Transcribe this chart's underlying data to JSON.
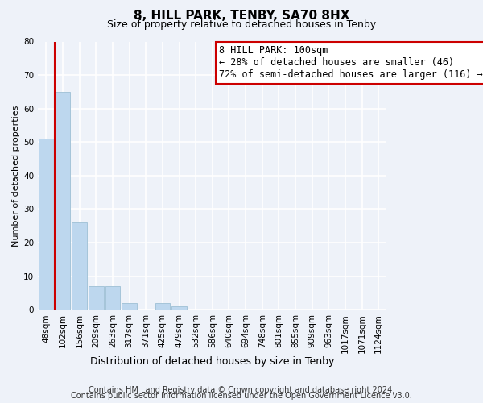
{
  "title": "8, HILL PARK, TENBY, SA70 8HX",
  "subtitle": "Size of property relative to detached houses in Tenby",
  "xlabel": "Distribution of detached houses by size in Tenby",
  "ylabel": "Number of detached properties",
  "bin_labels": [
    "48sqm",
    "102sqm",
    "156sqm",
    "209sqm",
    "263sqm",
    "317sqm",
    "371sqm",
    "425sqm",
    "479sqm",
    "532sqm",
    "586sqm",
    "640sqm",
    "694sqm",
    "748sqm",
    "801sqm",
    "855sqm",
    "909sqm",
    "963sqm",
    "1017sqm",
    "1071sqm",
    "1124sqm"
  ],
  "bar_values": [
    51,
    65,
    26,
    7,
    7,
    2,
    0,
    2,
    1,
    0,
    0,
    0,
    0,
    0,
    0,
    0,
    0,
    0,
    0,
    0,
    0
  ],
  "bar_color": "#bdd7ee",
  "bar_edge_color": "#9dbfd4",
  "highlight_line_color": "#cc0000",
  "ylim": [
    0,
    80
  ],
  "yticks": [
    0,
    10,
    20,
    30,
    40,
    50,
    60,
    70,
    80
  ],
  "annotation_line1": "8 HILL PARK: 100sqm",
  "annotation_line2": "← 28% of detached houses are smaller (46)",
  "annotation_line3": "72% of semi-detached houses are larger (116) →",
  "annotation_box_edge_color": "#cc0000",
  "annotation_box_fill": "#ffffff",
  "footer_line1": "Contains HM Land Registry data © Crown copyright and database right 2024.",
  "footer_line2": "Contains public sector information licensed under the Open Government Licence v3.0.",
  "background_color": "#eef2f9",
  "grid_color": "#ffffff",
  "title_fontsize": 11,
  "subtitle_fontsize": 9,
  "xlabel_fontsize": 9,
  "ylabel_fontsize": 8,
  "tick_fontsize": 7.5,
  "annotation_fontsize": 8.5,
  "footer_fontsize": 7
}
